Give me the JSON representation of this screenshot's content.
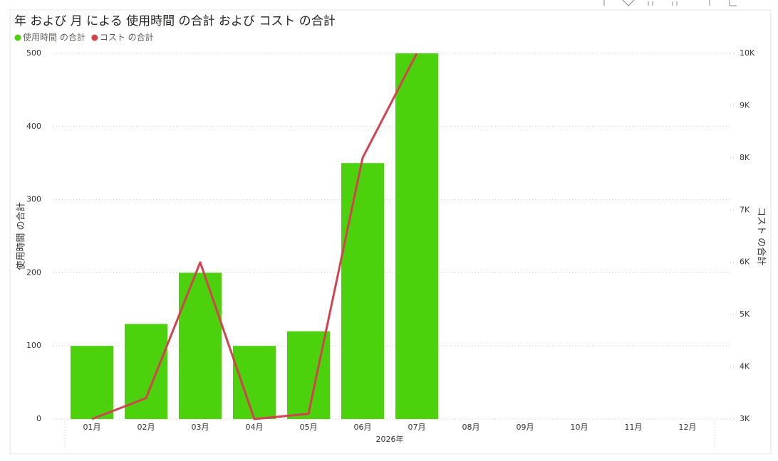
{
  "chart_data": {
    "type": "combo",
    "title": "年 および 月 による 使用時間 の合計 および コスト の合計",
    "categories": [
      "01月",
      "02月",
      "03月",
      "04月",
      "05月",
      "06月",
      "07月",
      "08月",
      "09月",
      "10月",
      "11月",
      "12月"
    ],
    "x_group_label": "2026年",
    "series": [
      {
        "name": "使用時間 の合計",
        "type": "bar",
        "color": "#4cd20c",
        "values": [
          100,
          130,
          200,
          100,
          120,
          350,
          500,
          null,
          null,
          null,
          null,
          null
        ]
      },
      {
        "name": "コスト の合計",
        "type": "line",
        "axis": "y2",
        "color": "#d2424f",
        "values": [
          3000,
          3400,
          6000,
          3000,
          3100,
          8000,
          10000,
          null,
          null,
          null,
          null,
          null
        ]
      }
    ],
    "ylabel": "使用時間 の合計",
    "y2label": "コスト の合計",
    "ylim": [
      0,
      500
    ],
    "yticks": [
      0,
      100,
      200,
      300,
      400,
      500
    ],
    "y2lim": [
      3000,
      10000
    ],
    "y2ticks": [
      {
        "value": 3000,
        "label": "3K"
      },
      {
        "value": 4000,
        "label": "4K"
      },
      {
        "value": 5000,
        "label": "5K"
      },
      {
        "value": 6000,
        "label": "6K"
      },
      {
        "value": 7000,
        "label": "7K"
      },
      {
        "value": 8000,
        "label": "8K"
      },
      {
        "value": 9000,
        "label": "9K"
      },
      {
        "value": 10000,
        "label": "10K"
      }
    ],
    "grid": true,
    "legend": "top-left"
  }
}
